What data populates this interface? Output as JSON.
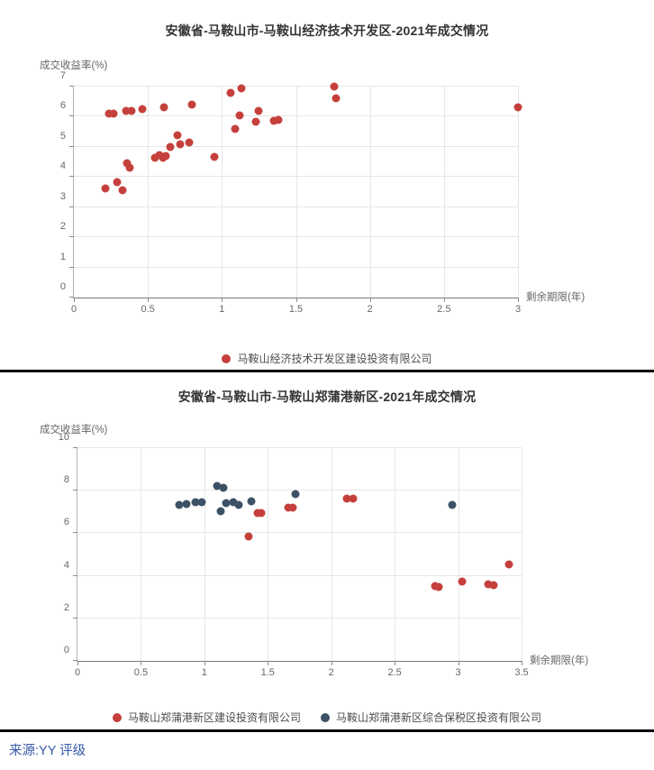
{
  "footer": {
    "source_text": "来源:YY 评级"
  },
  "colors": {
    "series_red": "#c5403c",
    "series_dark": "#3d5166",
    "divider": "#000000",
    "source_blue": "#3558a5"
  },
  "chart_data": [
    {
      "type": "scatter",
      "title": "安徽省-马鞍山市-马鞍山经济技术开发区-2021年成交情况",
      "xlabel": "剩余期限(年)",
      "ylabel": "成交收益率(%)",
      "xlim": [
        0,
        3
      ],
      "ylim": [
        0,
        7
      ],
      "x_ticks": [
        0,
        0.5,
        1,
        1.5,
        2,
        2.5,
        3
      ],
      "y_ticks": [
        0,
        1,
        2,
        3,
        4,
        5,
        6,
        7
      ],
      "grid": true,
      "legend_position": "bottom",
      "series": [
        {
          "name": "马鞍山经济技术开发区建设投资有限公司",
          "color": "#c5403c",
          "points": [
            [
              0.21,
              3.62
            ],
            [
              0.24,
              6.1
            ],
            [
              0.27,
              6.1
            ],
            [
              0.29,
              3.83
            ],
            [
              0.33,
              3.55
            ],
            [
              0.35,
              6.2
            ],
            [
              0.36,
              4.45
            ],
            [
              0.38,
              4.3
            ],
            [
              0.39,
              6.2
            ],
            [
              0.46,
              6.25
            ],
            [
              0.55,
              4.65
            ],
            [
              0.58,
              4.72
            ],
            [
              0.6,
              4.63
            ],
            [
              0.61,
              6.3
            ],
            [
              0.62,
              4.7
            ],
            [
              0.65,
              5.0
            ],
            [
              0.7,
              5.38
            ],
            [
              0.72,
              5.1
            ],
            [
              0.78,
              5.15
            ],
            [
              0.8,
              6.4
            ],
            [
              0.95,
              4.68
            ],
            [
              1.06,
              6.8
            ],
            [
              1.09,
              5.6
            ],
            [
              1.12,
              6.05
            ],
            [
              1.13,
              6.95
            ],
            [
              1.23,
              5.82
            ],
            [
              1.25,
              6.2
            ],
            [
              1.35,
              5.86
            ],
            [
              1.38,
              5.88
            ],
            [
              1.76,
              7.0
            ],
            [
              1.77,
              6.6
            ],
            [
              3.0,
              6.3
            ]
          ]
        }
      ]
    },
    {
      "type": "scatter",
      "title": "安徽省-马鞍山市-马鞍山郑蒲港新区-2021年成交情况",
      "xlabel": "剩余期限(年)",
      "ylabel": "成交收益率(%)",
      "xlim": [
        0,
        3.5
      ],
      "ylim": [
        0,
        10
      ],
      "x_ticks": [
        0,
        0.5,
        1,
        1.5,
        2,
        2.5,
        3,
        3.5
      ],
      "y_ticks": [
        0,
        2,
        4,
        6,
        8,
        10
      ],
      "grid": true,
      "legend_position": "bottom",
      "series": [
        {
          "name": "马鞍山郑蒲港新区建设投资有限公司",
          "color": "#c5403c",
          "points": [
            [
              1.35,
              5.85
            ],
            [
              1.42,
              6.95
            ],
            [
              1.45,
              6.93
            ],
            [
              1.66,
              7.2
            ],
            [
              1.7,
              7.2
            ],
            [
              2.12,
              7.62
            ],
            [
              2.17,
              7.62
            ],
            [
              2.82,
              3.5
            ],
            [
              2.85,
              3.48
            ],
            [
              3.03,
              3.75
            ],
            [
              3.24,
              3.6
            ],
            [
              3.28,
              3.58
            ],
            [
              3.4,
              4.55
            ]
          ]
        },
        {
          "name": "马鞍山郑蒲港新区综合保税区投资有限公司",
          "color": "#3d5166",
          "points": [
            [
              0.8,
              7.35
            ],
            [
              0.86,
              7.38
            ],
            [
              0.93,
              7.45
            ],
            [
              0.98,
              7.45
            ],
            [
              1.1,
              8.22
            ],
            [
              1.13,
              7.05
            ],
            [
              1.15,
              8.12
            ],
            [
              1.17,
              7.4
            ],
            [
              1.23,
              7.45
            ],
            [
              1.27,
              7.35
            ],
            [
              1.37,
              7.5
            ],
            [
              1.72,
              7.82
            ],
            [
              2.95,
              7.35
            ]
          ]
        }
      ]
    }
  ]
}
